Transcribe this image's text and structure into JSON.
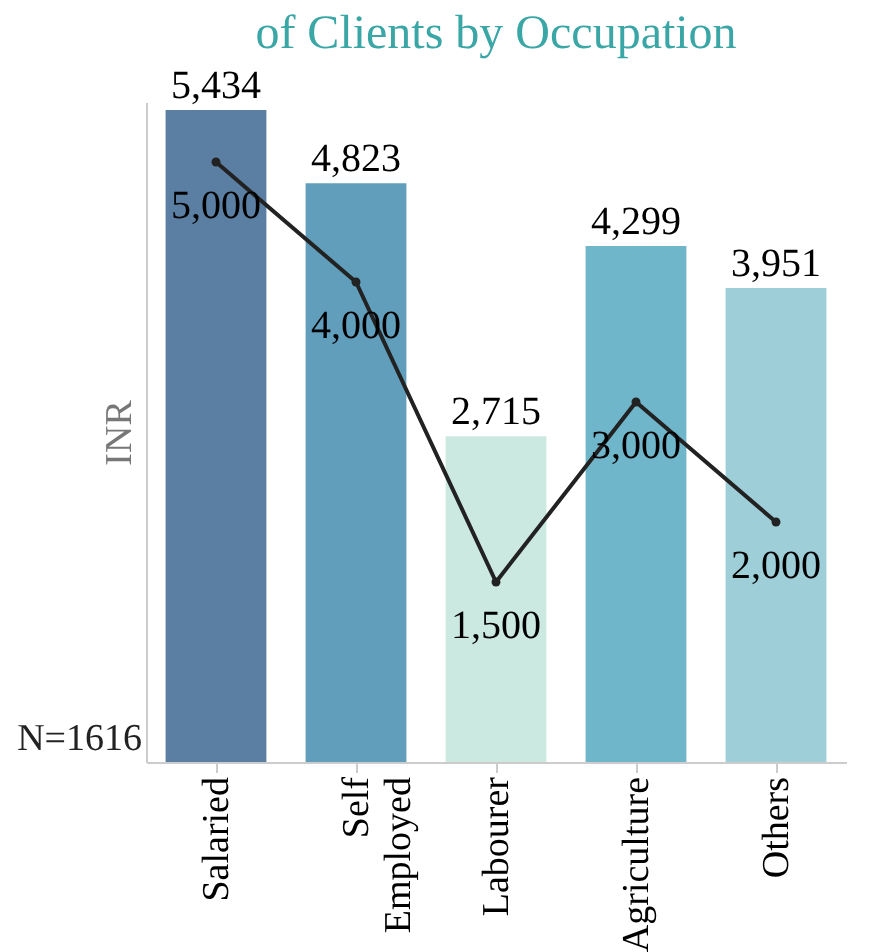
{
  "chart_data": {
    "type": "bar",
    "title": "of Clients by Occupation",
    "ylabel": "INR",
    "categories": [
      "Salaried",
      "Self Employed",
      "Labourer",
      "Agriculture",
      "Others"
    ],
    "series": [
      {
        "colors": [
          "#5b7fa3",
          "#609ebb",
          "#cce9e1",
          "#70b6ca",
          "#9ecfd9"
        ],
        "values": [
          5434,
          4823,
          2715,
          4299,
          3951
        ],
        "value_labels": [
          "5,434",
          "4,823",
          "2,715",
          "4,299",
          "3,951"
        ]
      },
      {
        "type": "line",
        "color": "#222222",
        "marker": "circle",
        "values": [
          5000,
          4000,
          1500,
          3000,
          2000
        ],
        "value_labels": [
          "5,000",
          "4,000",
          "1,500",
          "3,000",
          "2,000"
        ]
      }
    ],
    "tick_labels": "x",
    "annotations": [
      "N=1616"
    ]
  }
}
